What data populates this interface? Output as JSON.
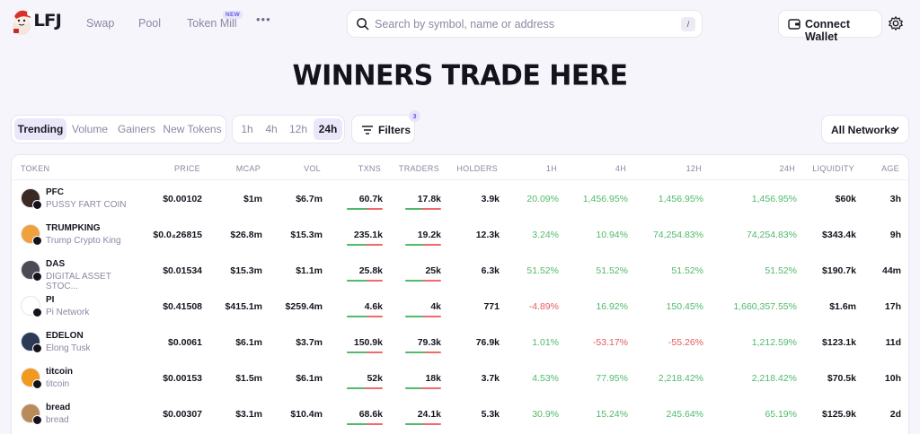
{
  "app": {
    "logo_text": "LFJ",
    "accent": "#6a60e0",
    "positive_color": "#4fba6b",
    "negative_color": "#e75a5a"
  },
  "nav": {
    "items": [
      {
        "label": "Swap"
      },
      {
        "label": "Pool"
      },
      {
        "label": "Token Mill",
        "badge": "NEW"
      }
    ],
    "more_icon": "more-horizontal-icon"
  },
  "search": {
    "placeholder": "Search by symbol, name or address",
    "shortcut": "/",
    "value": ""
  },
  "wallet": {
    "connect_label": "Connect Wallet",
    "wallet_icon": "wallet-icon",
    "settings_icon": "gear-icon"
  },
  "hero": {
    "title": "WINNERS TRADE HERE"
  },
  "filters": {
    "sort_tabs": [
      "Trending",
      "Volume",
      "Gainers",
      "New Tokens"
    ],
    "active_sort": "Trending",
    "time_tabs": [
      "1h",
      "4h",
      "12h",
      "24h"
    ],
    "active_time": "24h",
    "filters_label": "Filters",
    "filters_count": "3",
    "network_label": "All Networks"
  },
  "table": {
    "columns": [
      "TOKEN",
      "PRICE",
      "MCAP",
      "VOL",
      "TXNS",
      "TRADERS",
      "HOLDERS",
      "1H",
      "4H",
      "12H",
      "24H",
      "LIQUIDITY",
      "AGE"
    ],
    "rows": [
      {
        "symbol": "PFC",
        "name": "PUSSY FART COIN",
        "price": "$0.00102",
        "mcap": "$1m",
        "vol": "$6.7m",
        "txns": "60.7k",
        "txns_buy_share": 0.55,
        "traders": "17.8k",
        "traders_buy_share": 0.45,
        "holders": "3.9k",
        "h1": "20.09%",
        "h4": "1,456.95%",
        "h12": "1,456.95%",
        "h24": "1,456.95%",
        "h1_dir": "pos",
        "h4_dir": "pos",
        "h12_dir": "pos",
        "h24_dir": "pos",
        "liquidity": "$60k",
        "age": "3h",
        "avatar_color": "#3b2a22"
      },
      {
        "symbol": "TRUMPKING",
        "name": "Trump Crypto King",
        "price": "$0.0₄26815",
        "mcap": "$26.8m",
        "vol": "$15.3m",
        "txns": "235.1k",
        "txns_buy_share": 0.52,
        "traders": "19.2k",
        "traders_buy_share": 0.5,
        "holders": "12.3k",
        "h1": "3.24%",
        "h4": "10.94%",
        "h12": "74,254.83%",
        "h24": "74,254.83%",
        "h1_dir": "pos",
        "h4_dir": "pos",
        "h12_dir": "pos",
        "h24_dir": "pos",
        "liquidity": "$343.4k",
        "age": "9h",
        "avatar_color": "#f0a13c"
      },
      {
        "symbol": "DAS",
        "name": "DIGITAL ASSET STOC...",
        "price": "$0.01534",
        "mcap": "$15.3m",
        "vol": "$1.1m",
        "txns": "25.8k",
        "txns_buy_share": 0.55,
        "traders": "25k",
        "traders_buy_share": 0.5,
        "holders": "6.3k",
        "h1": "51.52%",
        "h4": "51.52%",
        "h12": "51.52%",
        "h24": "51.52%",
        "h1_dir": "pos",
        "h4_dir": "pos",
        "h12_dir": "pos",
        "h24_dir": "pos",
        "liquidity": "$190.7k",
        "age": "44m",
        "avatar_color": "#4b4b55"
      },
      {
        "symbol": "PI",
        "name": "Pi Network",
        "price": "$0.41508",
        "mcap": "$415.1m",
        "vol": "$259.4m",
        "txns": "4.6k",
        "txns_buy_share": 0.55,
        "traders": "4k",
        "traders_buy_share": 0.5,
        "holders": "771",
        "h1": "-4.89%",
        "h4": "16.92%",
        "h12": "150.45%",
        "h24": "1,660,357.55%",
        "h1_dir": "neg",
        "h4_dir": "pos",
        "h12_dir": "pos",
        "h24_dir": "pos",
        "liquidity": "$1.6m",
        "age": "17h",
        "avatar_color": "#ffffff"
      },
      {
        "symbol": "EDELON",
        "name": "Elong Tusk",
        "price": "$0.0061",
        "mcap": "$6.1m",
        "vol": "$3.7m",
        "txns": "150.9k",
        "txns_buy_share": 0.55,
        "traders": "79.3k",
        "traders_buy_share": 0.55,
        "holders": "76.9k",
        "h1": "1.01%",
        "h4": "-53.17%",
        "h12": "-55.26%",
        "h24": "1,212.59%",
        "h1_dir": "pos",
        "h4_dir": "neg",
        "h12_dir": "neg",
        "h24_dir": "pos",
        "liquidity": "$123.1k",
        "age": "11d",
        "avatar_color": "#2b3a55"
      },
      {
        "symbol": "titcoin",
        "name": "titcoin",
        "price": "$0.00153",
        "mcap": "$1.5m",
        "vol": "$6.1m",
        "txns": "52k",
        "txns_buy_share": 0.5,
        "traders": "18k",
        "traders_buy_share": 0.45,
        "holders": "3.7k",
        "h1": "4.53%",
        "h4": "77.95%",
        "h12": "2,218.42%",
        "h24": "2,218.42%",
        "h1_dir": "pos",
        "h4_dir": "pos",
        "h12_dir": "pos",
        "h24_dir": "pos",
        "liquidity": "$70.5k",
        "age": "10h",
        "avatar_color": "#f29a1f"
      },
      {
        "symbol": "bread",
        "name": "bread",
        "price": "$0.00307",
        "mcap": "$3.1m",
        "vol": "$10.4m",
        "txns": "68.6k",
        "txns_buy_share": 0.55,
        "traders": "24.1k",
        "traders_buy_share": 0.5,
        "holders": "5.3k",
        "h1": "30.9%",
        "h4": "15.24%",
        "h12": "245.64%",
        "h24": "65.19%",
        "h1_dir": "pos",
        "h4_dir": "pos",
        "h12_dir": "pos",
        "h24_dir": "pos",
        "liquidity": "$125.9k",
        "age": "2d",
        "avatar_color": "#b98a5a"
      }
    ]
  }
}
